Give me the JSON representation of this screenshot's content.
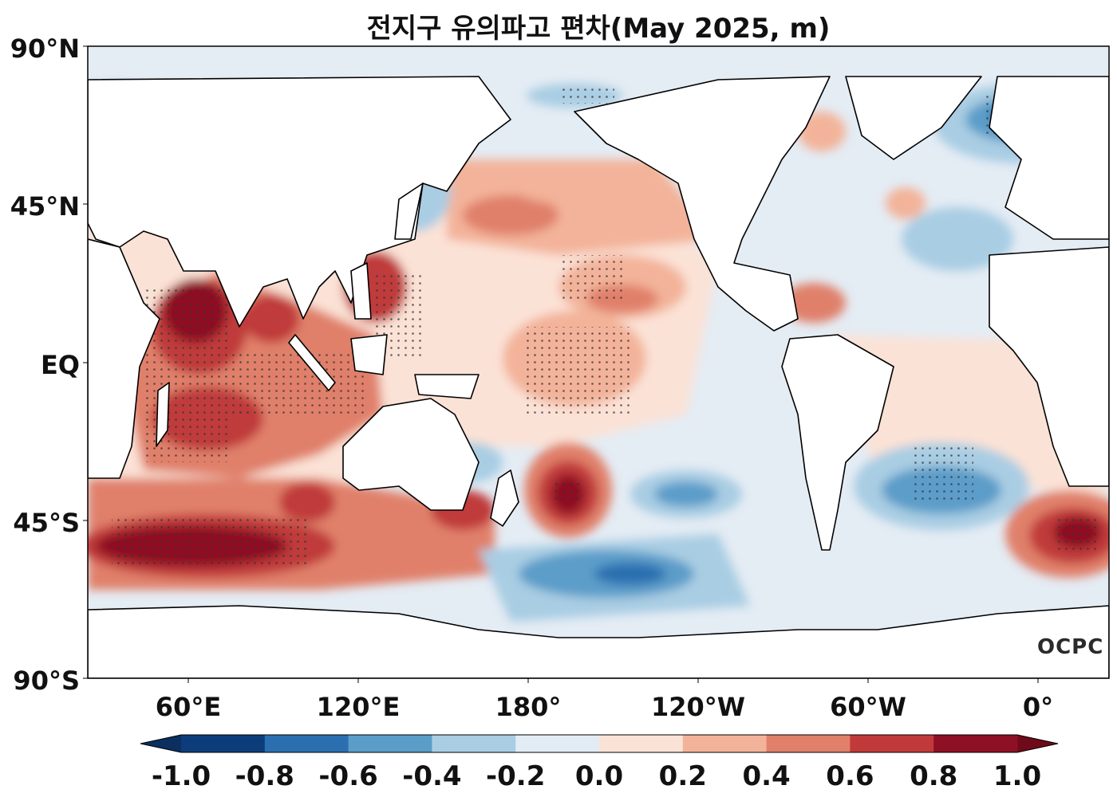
{
  "title": "전지구 유의파고 편차(May 2025, m)",
  "logo": "OCPC",
  "axes": {
    "y_ticks": [
      "90°N",
      "45°N",
      "EQ",
      "45°S",
      "90°S"
    ],
    "x_ticks": [
      "60°E",
      "120°E",
      "180°",
      "120°W",
      "60°W",
      "0°"
    ]
  },
  "colorbar": {
    "labels": [
      "-1.0",
      "-0.8",
      "-0.6",
      "-0.4",
      "-0.2",
      "0.0",
      "0.2",
      "0.4",
      "0.6",
      "0.8",
      "1.0"
    ],
    "colors": [
      "#0c3d7a",
      "#2b6fb0",
      "#5b9dc9",
      "#a9cde3",
      "#e2ecf5",
      "#fbe2d6",
      "#f3b39a",
      "#e0806a",
      "#c03a3a",
      "#8e1024"
    ],
    "extend_low_color": "#0a2f60",
    "extend_high_color": "#6e0a1a"
  },
  "colors": {
    "land": "#ffffff",
    "coast": "#000000",
    "neutral_ocean": "#e4ecf4"
  }
}
